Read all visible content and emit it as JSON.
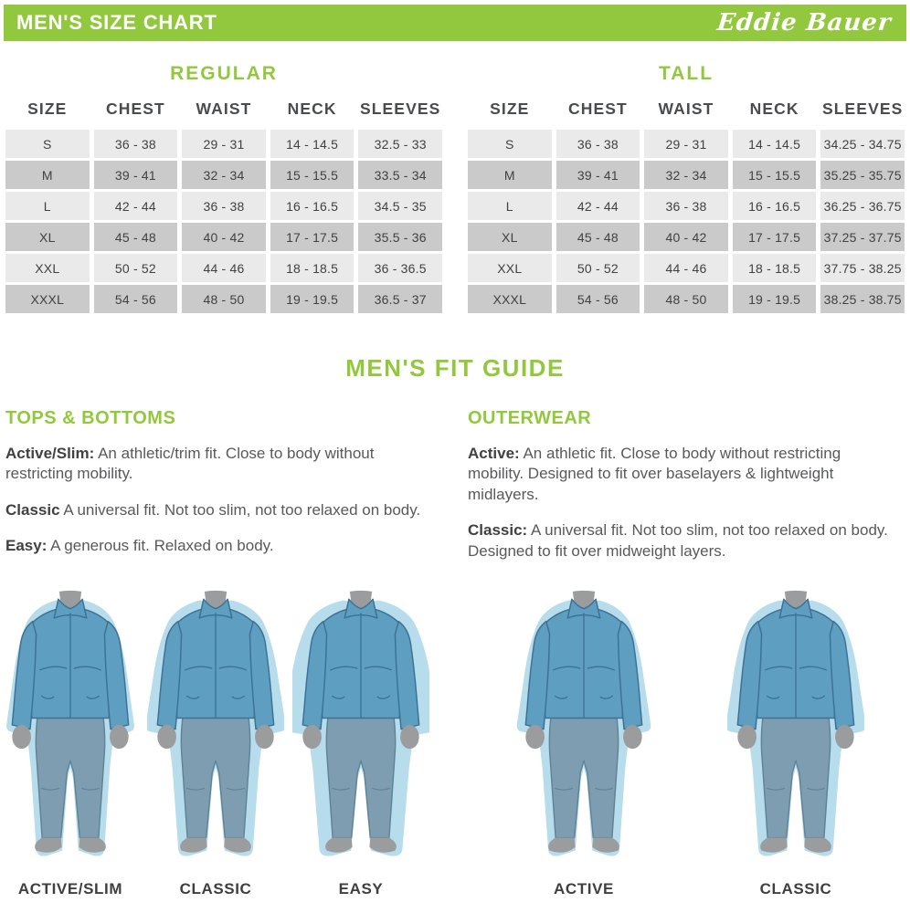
{
  "header": {
    "title": "MEN'S SIZE CHART",
    "brand": "Eddie Bauer"
  },
  "size_tables": {
    "columns": [
      "SIZE",
      "CHEST",
      "WAIST",
      "NECK",
      "SLEEVES"
    ],
    "regular": {
      "title": "REGULAR",
      "rows": [
        [
          "S",
          "36 - 38",
          "29 - 31",
          "14 - 14.5",
          "32.5 - 33"
        ],
        [
          "M",
          "39 - 41",
          "32 - 34",
          "15 - 15.5",
          "33.5 - 34"
        ],
        [
          "L",
          "42 - 44",
          "36 - 38",
          "16 - 16.5",
          "34.5 - 35"
        ],
        [
          "XL",
          "45 - 48",
          "40 - 42",
          "17 - 17.5",
          "35.5 - 36"
        ],
        [
          "XXL",
          "50 - 52",
          "44 - 46",
          "18 - 18.5",
          "36 - 36.5"
        ],
        [
          "XXXL",
          "54 - 56",
          "48 - 50",
          "19 - 19.5",
          "36.5 - 37"
        ]
      ]
    },
    "tall": {
      "title": "TALL",
      "rows": [
        [
          "S",
          "36 - 38",
          "29 - 31",
          "14 - 14.5",
          "34.25 - 34.75"
        ],
        [
          "M",
          "39 - 41",
          "32 - 34",
          "15 - 15.5",
          "35.25 - 35.75"
        ],
        [
          "L",
          "42 - 44",
          "36 - 38",
          "16 - 16.5",
          "36.25 - 36.75"
        ],
        [
          "XL",
          "45 - 48",
          "40 - 42",
          "17 - 17.5",
          "37.25 - 37.75"
        ],
        [
          "XXL",
          "50 - 52",
          "44 - 46",
          "18 - 18.5",
          "37.75 - 38.25"
        ],
        [
          "XXXL",
          "54 - 56",
          "48 - 50",
          "19 - 19.5",
          "38.25 - 38.75"
        ]
      ]
    }
  },
  "fit_guide": {
    "title": "MEN'S FIT GUIDE",
    "sections": [
      {
        "heading": "TOPS & BOTTOMS",
        "items": [
          {
            "term": "Active/Slim:",
            "desc": "An athletic/trim fit. Close to body without restricting mobility."
          },
          {
            "term": "Classic",
            "desc": "A universal fit. Not too slim, not too relaxed on body."
          },
          {
            "term": "Easy:",
            "desc": "A generous fit. Relaxed on body."
          }
        ]
      },
      {
        "heading": "OUTERWEAR",
        "items": [
          {
            "term": "Active:",
            "desc": "An athletic fit. Close to body without restricting mobility. Designed to fit over baselayers & lightweight midlayers."
          },
          {
            "term": "Classic:",
            "desc": "A universal fit. Not too slim, not too relaxed on body. Designed to fit over midweight layers."
          }
        ]
      }
    ]
  },
  "figures": {
    "left": [
      {
        "label": "ACTIVE/SLIM",
        "fit": "slim"
      },
      {
        "label": "CLASSIC",
        "fit": "classic"
      },
      {
        "label": "EASY",
        "fit": "easy"
      }
    ],
    "right": [
      {
        "label": "ACTIVE",
        "fit": "active"
      },
      {
        "label": "CLASSIC",
        "fit": "classic"
      }
    ]
  },
  "colors": {
    "green": "#92C83D",
    "row_light": "#EAEAEA",
    "row_dark": "#CACACA",
    "text_dark": "#414042",
    "text_gray": "#58595B",
    "jacket": "#5E9EC0",
    "jacket_line": "#3E7294",
    "pants": "#7E9DB0",
    "pants_line": "#5E8296",
    "fit_shadow": "#B7DCEC",
    "skin": "#9A9C9E"
  }
}
